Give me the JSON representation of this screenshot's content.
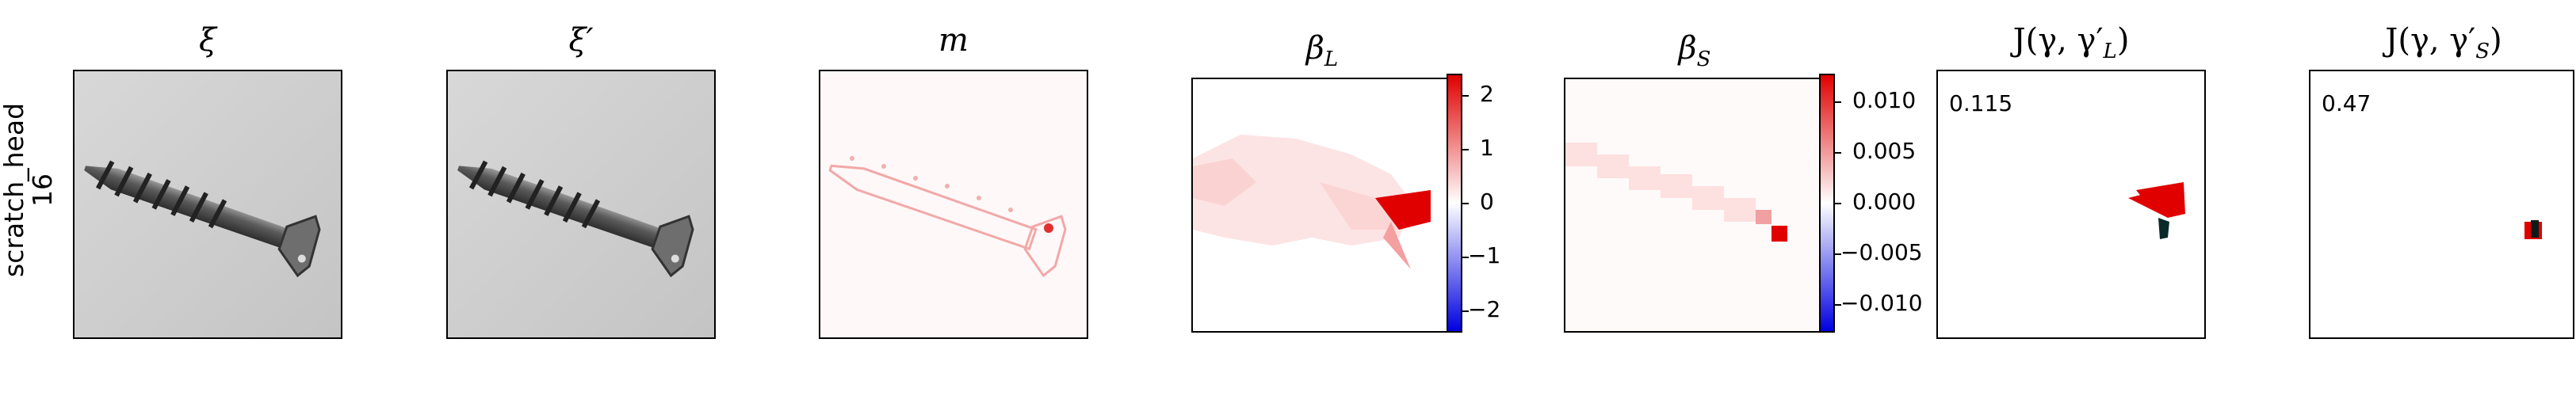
{
  "row_label": {
    "line1": "scratch_head",
    "line2": "16"
  },
  "panels": {
    "xi": {
      "title": "ξ"
    },
    "xi_prime": {
      "title": "ξ′"
    },
    "m": {
      "title": "m"
    },
    "beta_L": {
      "title_main": "β",
      "title_sub": "L",
      "colorbar": {
        "ticks": [
          "2",
          "1",
          "0",
          "−1",
          "−2"
        ]
      }
    },
    "beta_S": {
      "title_main": "β",
      "title_sub": "S",
      "colorbar": {
        "ticks": [
          "0.010",
          "0.005",
          "0.000",
          "−0.005",
          "−0.010"
        ]
      }
    },
    "J_L": {
      "title": "J(γ, γ′",
      "title_sub": "L",
      "title_end": ")",
      "score": "0.115"
    },
    "J_S": {
      "title": "J(γ, γ′",
      "title_sub": "S",
      "title_end": ")",
      "score": "0.47"
    }
  },
  "colors": {
    "positive": "#e00000",
    "negative": "#0000e0",
    "neutral": "#ffffff"
  }
}
